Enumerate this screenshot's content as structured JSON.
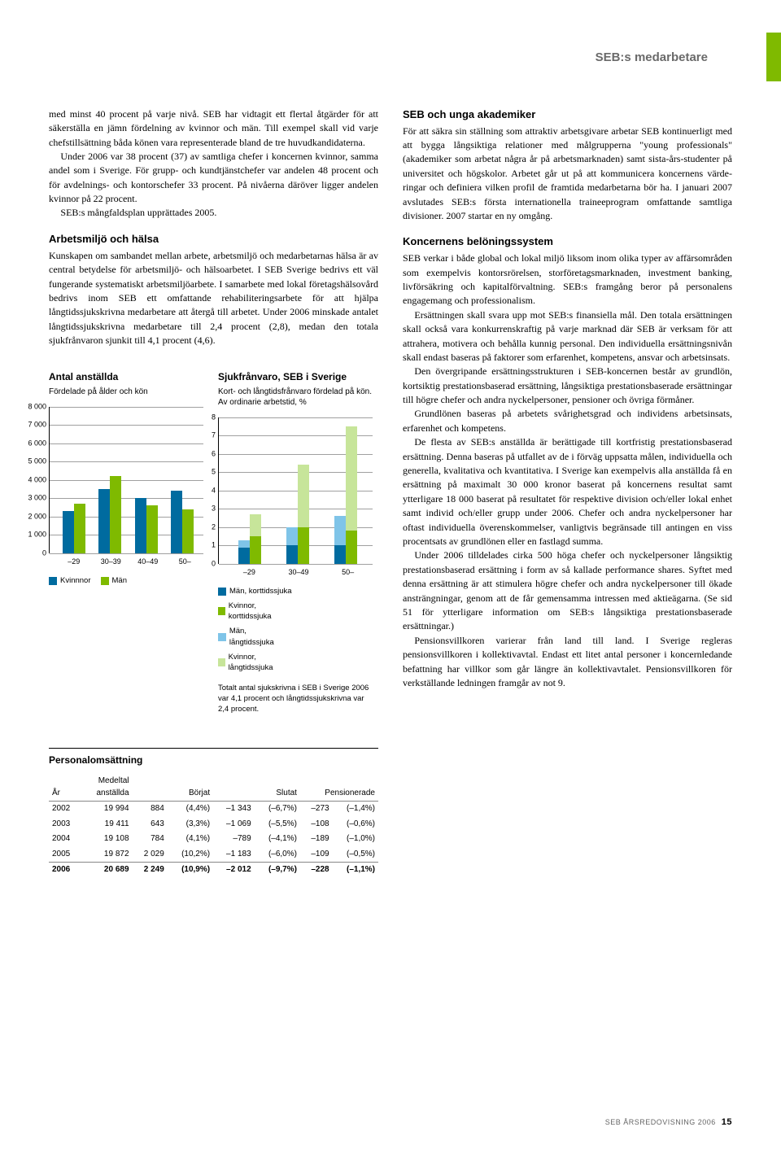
{
  "header": {
    "section_title": "SEB:s medarbetare"
  },
  "left": {
    "p1": "med minst 40 procent på varje nivå. SEB har vidtagit ett flertal åtgärder för att säkerställa en jämn fördelning av kvinnor och män. Till exempel skall vid varje chefstillsättning båda könen vara representerade bland de tre huvudkandidaterna.",
    "p2": "Under 2006 var 38 procent (37) av samtliga chefer i koncernen kvinnor, samma andel som i Sverige. För grupp- och kundtjänst­chefer var andelen 48 procent och för avdelnings- och kontors­chefer 33 procent. På nivåerna däröver ligger andelen kvinnor på 22 procent.",
    "p3": "SEB:s mångfaldsplan upprättades 2005.",
    "h2a": "Arbetsmiljö och hälsa",
    "p4": "Kunskapen om sambandet mellan arbete, arbetsmiljö och med­arbetarnas hälsa är av central betydelse för arbetsmiljö- och hälso­arbetet. I SEB Sverige bedrivs ett väl fungerande systematiskt arbetsmiljöarbete. I samarbete med lokal företagshälsovård bedrivs inom SEB ett omfattande rehabiliteringsarbete för att hjälpa långtidssjukskrivna medarbetare att återgå till arbetet. Under 2006 minskade antalet långtidssjukskrivna medarbetare till 2,4 procent (2,8), medan den totala sjukfrånvaron sjunkit till 4,1 procent (4,6)."
  },
  "right": {
    "h2a": "SEB och unga akademiker",
    "p1": "För att säkra sin ställning som attraktiv arbetsgivare arbetar SEB kontinuerligt med att bygga långsiktiga relationer med målgrup­perna \"young professionals\" (akademiker som arbetat några år på arbetsmarknaden) samt sista-års-studenter på universitet och högskolor. Arbetet går ut på att kommunicera koncernens värde­ringar och definiera vilken profil de framtida medarbetarna bör ha. I januari 2007 avslutades SEB:s första internationella trainee­program omfattande samtliga divisioner. 2007 startar en ny omgång.",
    "h2b": "Koncernens belöningssystem",
    "p2": "SEB verkar i både global och lokal miljö liksom inom olika typer av affärsområden som exempelvis kontorsrörelsen, storföretags­marknaden, investment banking, livförsäkring och kapitalför­valtning. SEB:s framgång beror på personalens engagemang och professionalism.",
    "p3": "Ersättningen skall svara upp mot SEB:s finansiella mål. Den totala ersättningen skall också vara konkurrenskraftig på varje marknad där SEB är verksam för att attrahera, motivera och behålla kunnig personal. Den individuella ersättningsnivån skall endast baseras på faktorer som erfarenhet, kompetens, ansvar och arbetsinsats.",
    "p4": "Den övergripande ersättningsstrukturen i SEB-koncernen består av grundlön, kortsiktig prestationsbaserad ersättning, långsiktiga prestationsbaserade ersättningar till högre chefer och andra nyckelpersoner, pensioner och övriga förmåner.",
    "p5": "Grundlönen baseras på arbetets svårighetsgrad och individens arbetsinsats, erfarenhet och kompetens.",
    "p6": "De flesta av SEB:s anställda är berättigade till kortfristig prestationsbaserad ersättning. Denna baseras på utfallet av de i förväg uppsatta målen, individuella och generella, kvalitativa och kvantitativa. I Sverige kan exempelvis alla anställda få en ersättning på maximalt 30 000 kronor baserat på koncernens resultat samt ytterligare 18 000 baserat på resultatet för respek­tive division och/eller lokal enhet samt individ och/eller grupp under 2006. Chefer och andra nyckelpersoner har oftast indivi­duella överenskommelser, vanligtvis begränsade till antingen en viss procentsats av grundlönen eller en fastlagd summa.",
    "p7": "Under 2006 tilldelades cirka 500 höga chefer och nyckelper­soner långsiktig prestationsbaserad ersättning i form av så kallade performance shares. Syftet med denna ersättning är att stimulera högre chefer och andra nyckelpersoner till ökade ansträngningar, genom att de får gemensamma intressen med aktieägarna. (Se sid 51 för ytterligare information om SEB:s lång­siktiga prestationsbaserade ersättningar.)",
    "p8": "Pensionsvillkoren varierar från land till land. I Sverige regle­ras pensionsvillkoren i kollektivavtal. Endast ett litet antal per­soner i koncernledande befattning har villkor som går längre än kollektivavtalet. Pensionsvillkoren för verkställande ledningen framgår av not 9."
  },
  "chart1": {
    "type": "bar",
    "title": "Antal anställda",
    "subtitle": "Fördelade på ålder och kön",
    "categories": [
      "–29",
      "30–39",
      "40–49",
      "50–"
    ],
    "ymax": 8000,
    "ytick_step": 1000,
    "ytick_labels": [
      "0",
      "1 000",
      "2 000",
      "3 000",
      "4 000",
      "5 000",
      "6 000",
      "7 000",
      "8 000"
    ],
    "series": [
      {
        "label": "Kvinnnor",
        "color": "#006b9f",
        "values": [
          2300,
          3500,
          3000,
          3400
        ]
      },
      {
        "label": "Män",
        "color": "#7fba00",
        "values": [
          2700,
          4200,
          2600,
          2400
        ]
      }
    ]
  },
  "chart2": {
    "type": "stacked-bar",
    "title": "Sjukfrånvaro, SEB i Sverige",
    "subtitle": "Kort- och långtidsfrånvaro fördelad på kön. Av ordinarie arbetstid, %",
    "categories": [
      "–29",
      "30–49",
      "50–"
    ],
    "ymax": 8,
    "ytick_step": 1,
    "ytick_labels": [
      "0",
      "1",
      "2",
      "3",
      "4",
      "5",
      "6",
      "7",
      "8"
    ],
    "stacks": [
      {
        "group": "Män",
        "segments": [
          {
            "label": "Män, korttidssjuka",
            "color": "#006b9f"
          },
          {
            "label": "Män, långtidssjuka",
            "color": "#7fc4e8"
          }
        ],
        "values": [
          [
            0.9,
            0.4
          ],
          [
            1.0,
            1.0
          ],
          [
            1.0,
            1.6
          ]
        ]
      },
      {
        "group": "Kvinnor",
        "segments": [
          {
            "label": "Kvinnor, korttidssjuka",
            "color": "#7fba00"
          },
          {
            "label": "Kvinnor, långtidssjuka",
            "color": "#c7e59a"
          }
        ],
        "values": [
          [
            1.5,
            1.2
          ],
          [
            2.0,
            3.4
          ],
          [
            1.8,
            5.7
          ]
        ]
      }
    ],
    "note": "Totalt antal sjukskrivna i SEB i Sverige 2006 var 4,1 procent och långtidssjukskrivna var 2,4 procent."
  },
  "table": {
    "title": "Personalomsättning",
    "columns": [
      "År",
      "Medeltal anställda",
      "Börjat",
      "",
      "Slutat",
      "",
      "Pensionerade",
      ""
    ],
    "rows": [
      [
        "2002",
        "19 994",
        "884",
        "(4,4%)",
        "–1 343",
        "(–6,7%)",
        "–273",
        "(–1,4%)"
      ],
      [
        "2003",
        "19 411",
        "643",
        "(3,3%)",
        "–1 069",
        "(–5,5%)",
        "–108",
        "(–0,6%)"
      ],
      [
        "2004",
        "19 108",
        "784",
        "(4,1%)",
        "–789",
        "(–4,1%)",
        "–189",
        "(–1,0%)"
      ],
      [
        "2005",
        "19 872",
        "2 029",
        "(10,2%)",
        "–1 183",
        "(–6,0%)",
        "–109",
        "(–0,5%)"
      ],
      [
        "2006",
        "20 689",
        "2 249",
        "(10,9%)",
        "–2 012",
        "(–9,7%)",
        "–228",
        "(–1,1%)"
      ]
    ]
  },
  "footer": {
    "text": "SEB ÅRSREDOVISNING 2006",
    "page": "15"
  }
}
